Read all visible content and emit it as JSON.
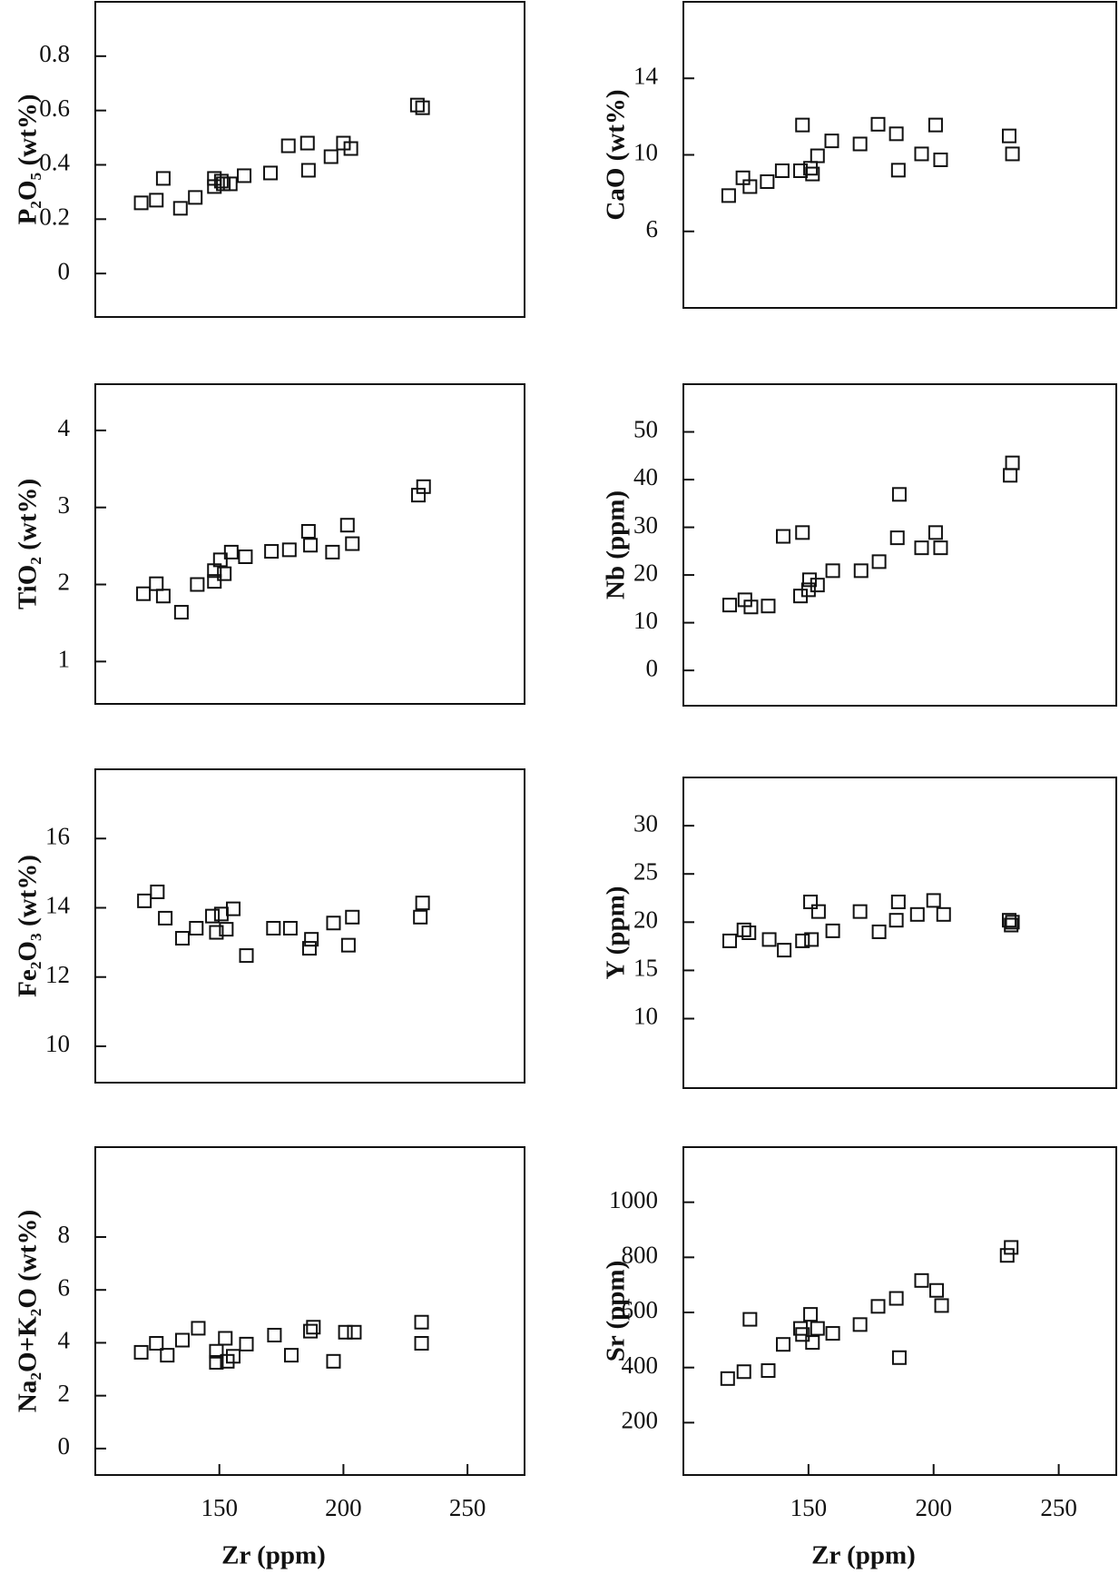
{
  "chart_data": [
    {
      "type": "scatter",
      "ylabel": "P₂O₅ (wt%)",
      "xlim": [
        100,
        273
      ],
      "ylim": [
        -0.16,
        1.0
      ],
      "yticks": [
        0,
        0.2,
        0.4,
        0.6,
        0.8
      ],
      "x": [
        118.5,
        124.6,
        127.4,
        134.3,
        140.3,
        148,
        148,
        150.8,
        151.6,
        154.4,
        160,
        170.6,
        177.8,
        185.5,
        185.9,
        195,
        200,
        203,
        229.8,
        231.9
      ],
      "values": [
        0.26,
        0.27,
        0.35,
        0.24,
        0.28,
        0.35,
        0.32,
        0.34,
        0.33,
        0.33,
        0.36,
        0.37,
        0.47,
        0.48,
        0.38,
        0.43,
        0.48,
        0.46,
        0.62,
        0.61
      ]
    },
    {
      "type": "scatter",
      "ylabel": "CaO (wt%)",
      "xlim": [
        100,
        273
      ],
      "ylim": [
        2,
        18
      ],
      "yticks": [
        6,
        10,
        14
      ],
      "x": [
        118.1,
        123.8,
        126.6,
        133.5,
        139.5,
        146.8,
        147.6,
        150.8,
        151.6,
        153.6,
        159.3,
        170.6,
        177.8,
        185.1,
        185.9,
        195.2,
        200.8,
        202.8,
        230.2,
        231.5
      ],
      "values": [
        7.87,
        8.8,
        8.34,
        8.6,
        9.17,
        9.17,
        11.56,
        9.3,
        9.0,
        9.95,
        10.73,
        10.57,
        11.6,
        11.1,
        9.2,
        10.05,
        11.56,
        9.74,
        10.99,
        10.05
      ]
    },
    {
      "type": "scatter",
      "ylabel": "TiO₂ (wt%)",
      "xlim": [
        100,
        273
      ],
      "ylim": [
        0.45,
        4.6
      ],
      "yticks": [
        1,
        2,
        3,
        4
      ],
      "x": [
        119.4,
        124.6,
        127.4,
        134.7,
        141.1,
        148,
        148,
        150.4,
        152,
        154.8,
        160.5,
        171,
        178.2,
        185.9,
        186.7,
        195.6,
        201.6,
        203.6,
        230.2,
        232.3
      ],
      "values": [
        1.88,
        2.01,
        1.85,
        1.64,
        2.0,
        2.18,
        2.04,
        2.32,
        2.14,
        2.42,
        2.36,
        2.43,
        2.45,
        2.69,
        2.51,
        2.42,
        2.77,
        2.53,
        3.16,
        3.27
      ]
    },
    {
      "type": "scatter",
      "ylabel": "Nb (ppm)",
      "xlim": [
        100,
        273
      ],
      "ylim": [
        -7.4,
        60
      ],
      "yticks": [
        0,
        10,
        20,
        30,
        40,
        50
      ],
      "x": [
        118.5,
        124.6,
        127,
        133.9,
        139.9,
        147.6,
        146.8,
        150,
        150.4,
        153.6,
        159.7,
        171,
        178.2,
        185.5,
        186.3,
        195.2,
        200.8,
        202.8,
        230.6,
        231.5
      ],
      "values": [
        13.7,
        14.8,
        13.3,
        13.5,
        28.1,
        28.9,
        15.6,
        16.9,
        19,
        17.9,
        20.9,
        20.9,
        22.8,
        27.8,
        36.9,
        25.7,
        28.9,
        25.7,
        40.9,
        43.5
      ]
    },
    {
      "type": "scatter",
      "ylabel": "Fe₂O₃ (wt%)",
      "xlim": [
        100,
        273
      ],
      "ylim": [
        8.95,
        18
      ],
      "yticks": [
        10,
        12,
        14,
        16
      ],
      "x": [
        119.8,
        125,
        128.2,
        135.1,
        140.7,
        147.2,
        148.8,
        150.8,
        152.8,
        155.6,
        160.9,
        171.8,
        178.6,
        186.3,
        187.1,
        196,
        202,
        203.6,
        231,
        231.9
      ],
      "values": [
        14.2,
        14.46,
        13.7,
        13.12,
        13.41,
        13.76,
        13.29,
        13.82,
        13.38,
        13.97,
        12.62,
        13.41,
        13.41,
        12.83,
        13.09,
        13.56,
        12.92,
        13.73,
        13.73,
        14.14
      ]
    },
    {
      "type": "scatter",
      "ylabel": "Y (ppm)",
      "xlim": [
        100,
        273
      ],
      "ylim": [
        2.8,
        35
      ],
      "yticks": [
        10,
        15,
        20,
        25,
        30
      ],
      "x": [
        118.5,
        124.2,
        126.2,
        134.3,
        140.3,
        147.6,
        150.8,
        151.2,
        154,
        159.7,
        170.6,
        178.2,
        185.1,
        185.9,
        193.5,
        200,
        204,
        230.2,
        231,
        231.5
      ],
      "values": [
        18.06,
        19.2,
        18.9,
        18.2,
        17.1,
        18.06,
        22.1,
        18.2,
        21.1,
        19.1,
        21.1,
        19.0,
        20.2,
        22.1,
        20.8,
        22.25,
        20.8,
        20.2,
        19.7,
        20.0
      ]
    },
    {
      "type": "scatter",
      "ylabel": "Na₂O+K₂O (wt%)",
      "xlabel": "Zr (ppm)",
      "xlim": [
        100,
        273
      ],
      "xticks": [
        150,
        200,
        250
      ],
      "ylim": [
        -1.0,
        11.4
      ],
      "yticks": [
        0,
        2,
        4,
        6,
        8
      ],
      "x": [
        118.5,
        124.6,
        129,
        135.1,
        141.5,
        148.8,
        148.8,
        152.4,
        153.2,
        155.6,
        160.9,
        172.2,
        179,
        186.7,
        187.9,
        196,
        200.8,
        204.4,
        231.5,
        231.5
      ],
      "values": [
        3.64,
        3.98,
        3.53,
        4.1,
        4.55,
        3.68,
        3.26,
        4.17,
        3.3,
        3.49,
        3.95,
        4.29,
        3.53,
        4.44,
        4.59,
        3.3,
        4.4,
        4.4,
        4.78,
        3.98
      ]
    },
    {
      "type": "scatter",
      "ylabel": "Sr (ppm)",
      "xlabel": "Zr (ppm)",
      "xlim": [
        100,
        273
      ],
      "xticks": [
        150,
        200,
        250
      ],
      "ylim": [
        10,
        1200
      ],
      "yticks": [
        200,
        400,
        600,
        800,
        1000
      ],
      "x": [
        117.7,
        124.2,
        126.6,
        133.9,
        139.9,
        146.8,
        147.6,
        150.8,
        151.6,
        153.6,
        159.7,
        170.6,
        177.8,
        185.1,
        186.3,
        195.2,
        201.2,
        203.2,
        229.4,
        231
      ],
      "values": [
        360,
        385,
        575,
        389,
        484,
        542,
        520,
        593,
        491,
        542,
        524,
        556,
        622,
        651,
        436,
        716,
        680,
        625,
        807,
        836
      ]
    }
  ]
}
